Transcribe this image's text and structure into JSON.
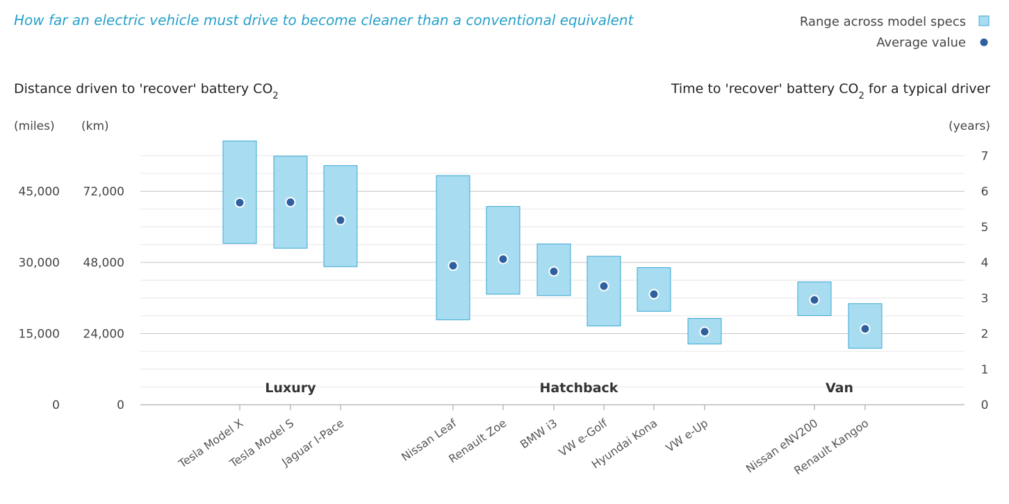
{
  "chart_data": {
    "type": "range-dot",
    "title": "How far an electric vehicle must drive to become cleaner than a conventional equivalent",
    "legend": {
      "range_label": "Range across model specs",
      "average_label": "Average value",
      "placement": "top-right"
    },
    "left_axis_title": "Distance driven to 'recover' battery CO",
    "left_axis_title_sub": "2",
    "right_axis_title_a": "Time to 'recover' battery CO",
    "right_axis_title_sub": "2",
    "right_axis_title_b": " for a typical driver",
    "units": {
      "miles": "(miles)",
      "km": "(km)",
      "years": "(years)"
    },
    "miles_ticks": [
      "0",
      "15,000",
      "30,000",
      "45,000"
    ],
    "km_ticks": [
      "0",
      "24,000",
      "48,000",
      "72,000"
    ],
    "years_ticks": [
      "0",
      "1",
      "2",
      "3",
      "4",
      "5",
      "6",
      "7"
    ],
    "ylim_miles": [
      0,
      52500
    ],
    "groups": [
      {
        "name": "Luxury",
        "models": [
          "Tesla Model X",
          "Tesla Model S",
          "Jaguar I-Pace"
        ]
      },
      {
        "name": "Hatchback",
        "models": [
          "Nissan Leaf",
          "Renault Zoe",
          "BMW i3",
          "VW e-Golf",
          "Hyundai Kona",
          "VW e-Up"
        ]
      },
      {
        "name": "Van",
        "models": [
          "Nissan eNV200",
          "Renault Kangoo"
        ]
      }
    ],
    "series": [
      {
        "name": "Tesla Model X",
        "min": 34000,
        "max": 55600,
        "avg": 42600
      },
      {
        "name": "Tesla Model S",
        "min": 33000,
        "max": 52400,
        "avg": 42700
      },
      {
        "name": "Jaguar I-Pace",
        "min": 29100,
        "max": 50400,
        "avg": 38900
      },
      {
        "name": "Nissan Leaf",
        "min": 17900,
        "max": 48300,
        "avg": 29300
      },
      {
        "name": "Renault Zoe",
        "min": 23300,
        "max": 41800,
        "avg": 30700
      },
      {
        "name": "BMW i3",
        "min": 23000,
        "max": 33900,
        "avg": 28100
      },
      {
        "name": "VW e-Golf",
        "min": 16600,
        "max": 31300,
        "avg": 25000
      },
      {
        "name": "Hyundai Kona",
        "min": 19700,
        "max": 28900,
        "avg": 23300
      },
      {
        "name": "VW e-Up",
        "min": 12800,
        "max": 18200,
        "avg": 15400
      },
      {
        "name": "Nissan eNV200",
        "min": 18800,
        "max": 25900,
        "avg": 22100
      },
      {
        "name": "Renault Kangoo",
        "min": 11900,
        "max": 21300,
        "avg": 16000
      }
    ],
    "colors": {
      "range_fill": "#a8dcf0",
      "range_stroke": "#3aa7d3",
      "average_dot": "#2e5f9e",
      "title": "#26a0c9",
      "grid_major": "#c6c6c6",
      "grid_minor": "#e6e6e6"
    }
  }
}
